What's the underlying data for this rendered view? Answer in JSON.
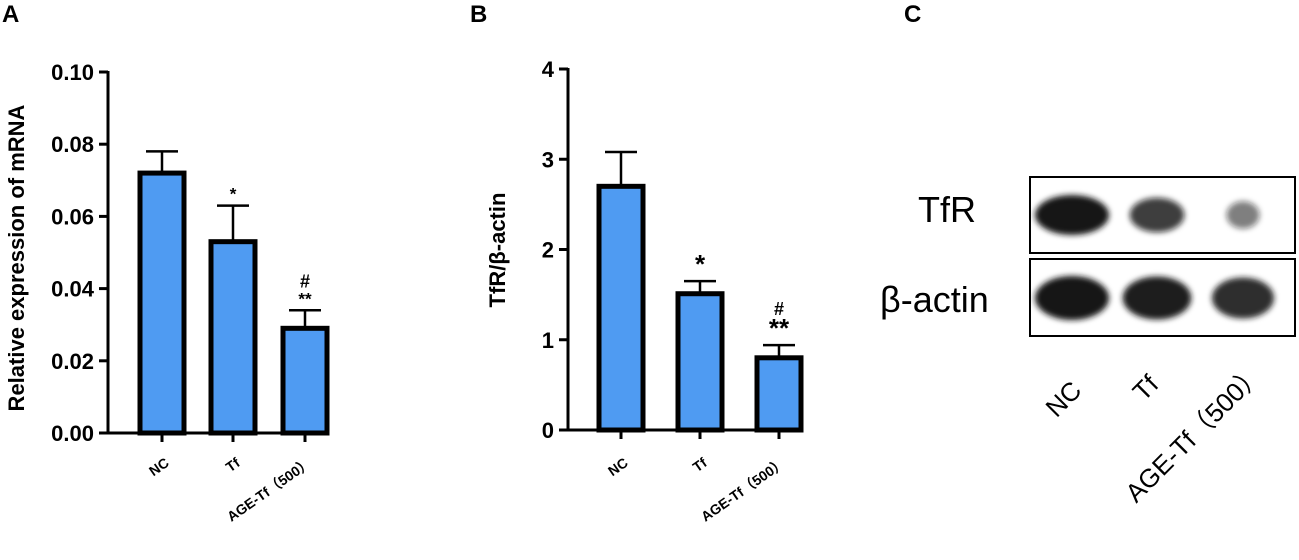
{
  "colors": {
    "bar_fill": "#4f9bf2",
    "bar_stroke": "#000000",
    "axis": "#000000",
    "band": "#141414"
  },
  "panels": {
    "a": {
      "letter": "A"
    },
    "b": {
      "letter": "B"
    },
    "c": {
      "letter": "C"
    }
  },
  "chart_data": [
    {
      "type": "bar",
      "panel": "A",
      "categories": [
        "NC",
        "Tf",
        "AGE-Tf（500）"
      ],
      "values": [
        0.072,
        0.053,
        0.029
      ],
      "errors": [
        0.006,
        0.01,
        0.005
      ],
      "significance": [
        [],
        [
          "*"
        ],
        [
          "**",
          "#"
        ]
      ],
      "ylabel": "Relative expression of mRNA",
      "ylim": [
        0,
        0.1
      ],
      "yticks": [
        0.0,
        0.02,
        0.04,
        0.06,
        0.08,
        0.1
      ],
      "ytick_labels": [
        "0.00",
        "0.02",
        "0.04",
        "0.06",
        "0.08",
        "0.10"
      ],
      "grid": false
    },
    {
      "type": "bar",
      "panel": "B",
      "categories": [
        "NC",
        "Tf",
        "AGE-Tf（500）"
      ],
      "values": [
        2.7,
        1.51,
        0.8
      ],
      "errors": [
        0.38,
        0.14,
        0.14
      ],
      "significance": [
        [],
        [
          "*"
        ],
        [
          "**",
          "#"
        ]
      ],
      "ylabel": "TfR/β-actin",
      "ylim": [
        0,
        4
      ],
      "yticks": [
        0,
        1,
        2,
        3,
        4
      ],
      "ytick_labels": [
        "0",
        "1",
        "2",
        "3",
        "4"
      ],
      "grid": false
    }
  ],
  "blot": {
    "rows": [
      {
        "label": "TfR",
        "intensities": [
          1.0,
          0.7,
          0.3
        ]
      },
      {
        "label": "β-actin",
        "intensities": [
          1.0,
          0.95,
          0.85
        ]
      }
    ],
    "lanes": [
      "NC",
      "Tf",
      "AGE-Tf（500）"
    ]
  }
}
